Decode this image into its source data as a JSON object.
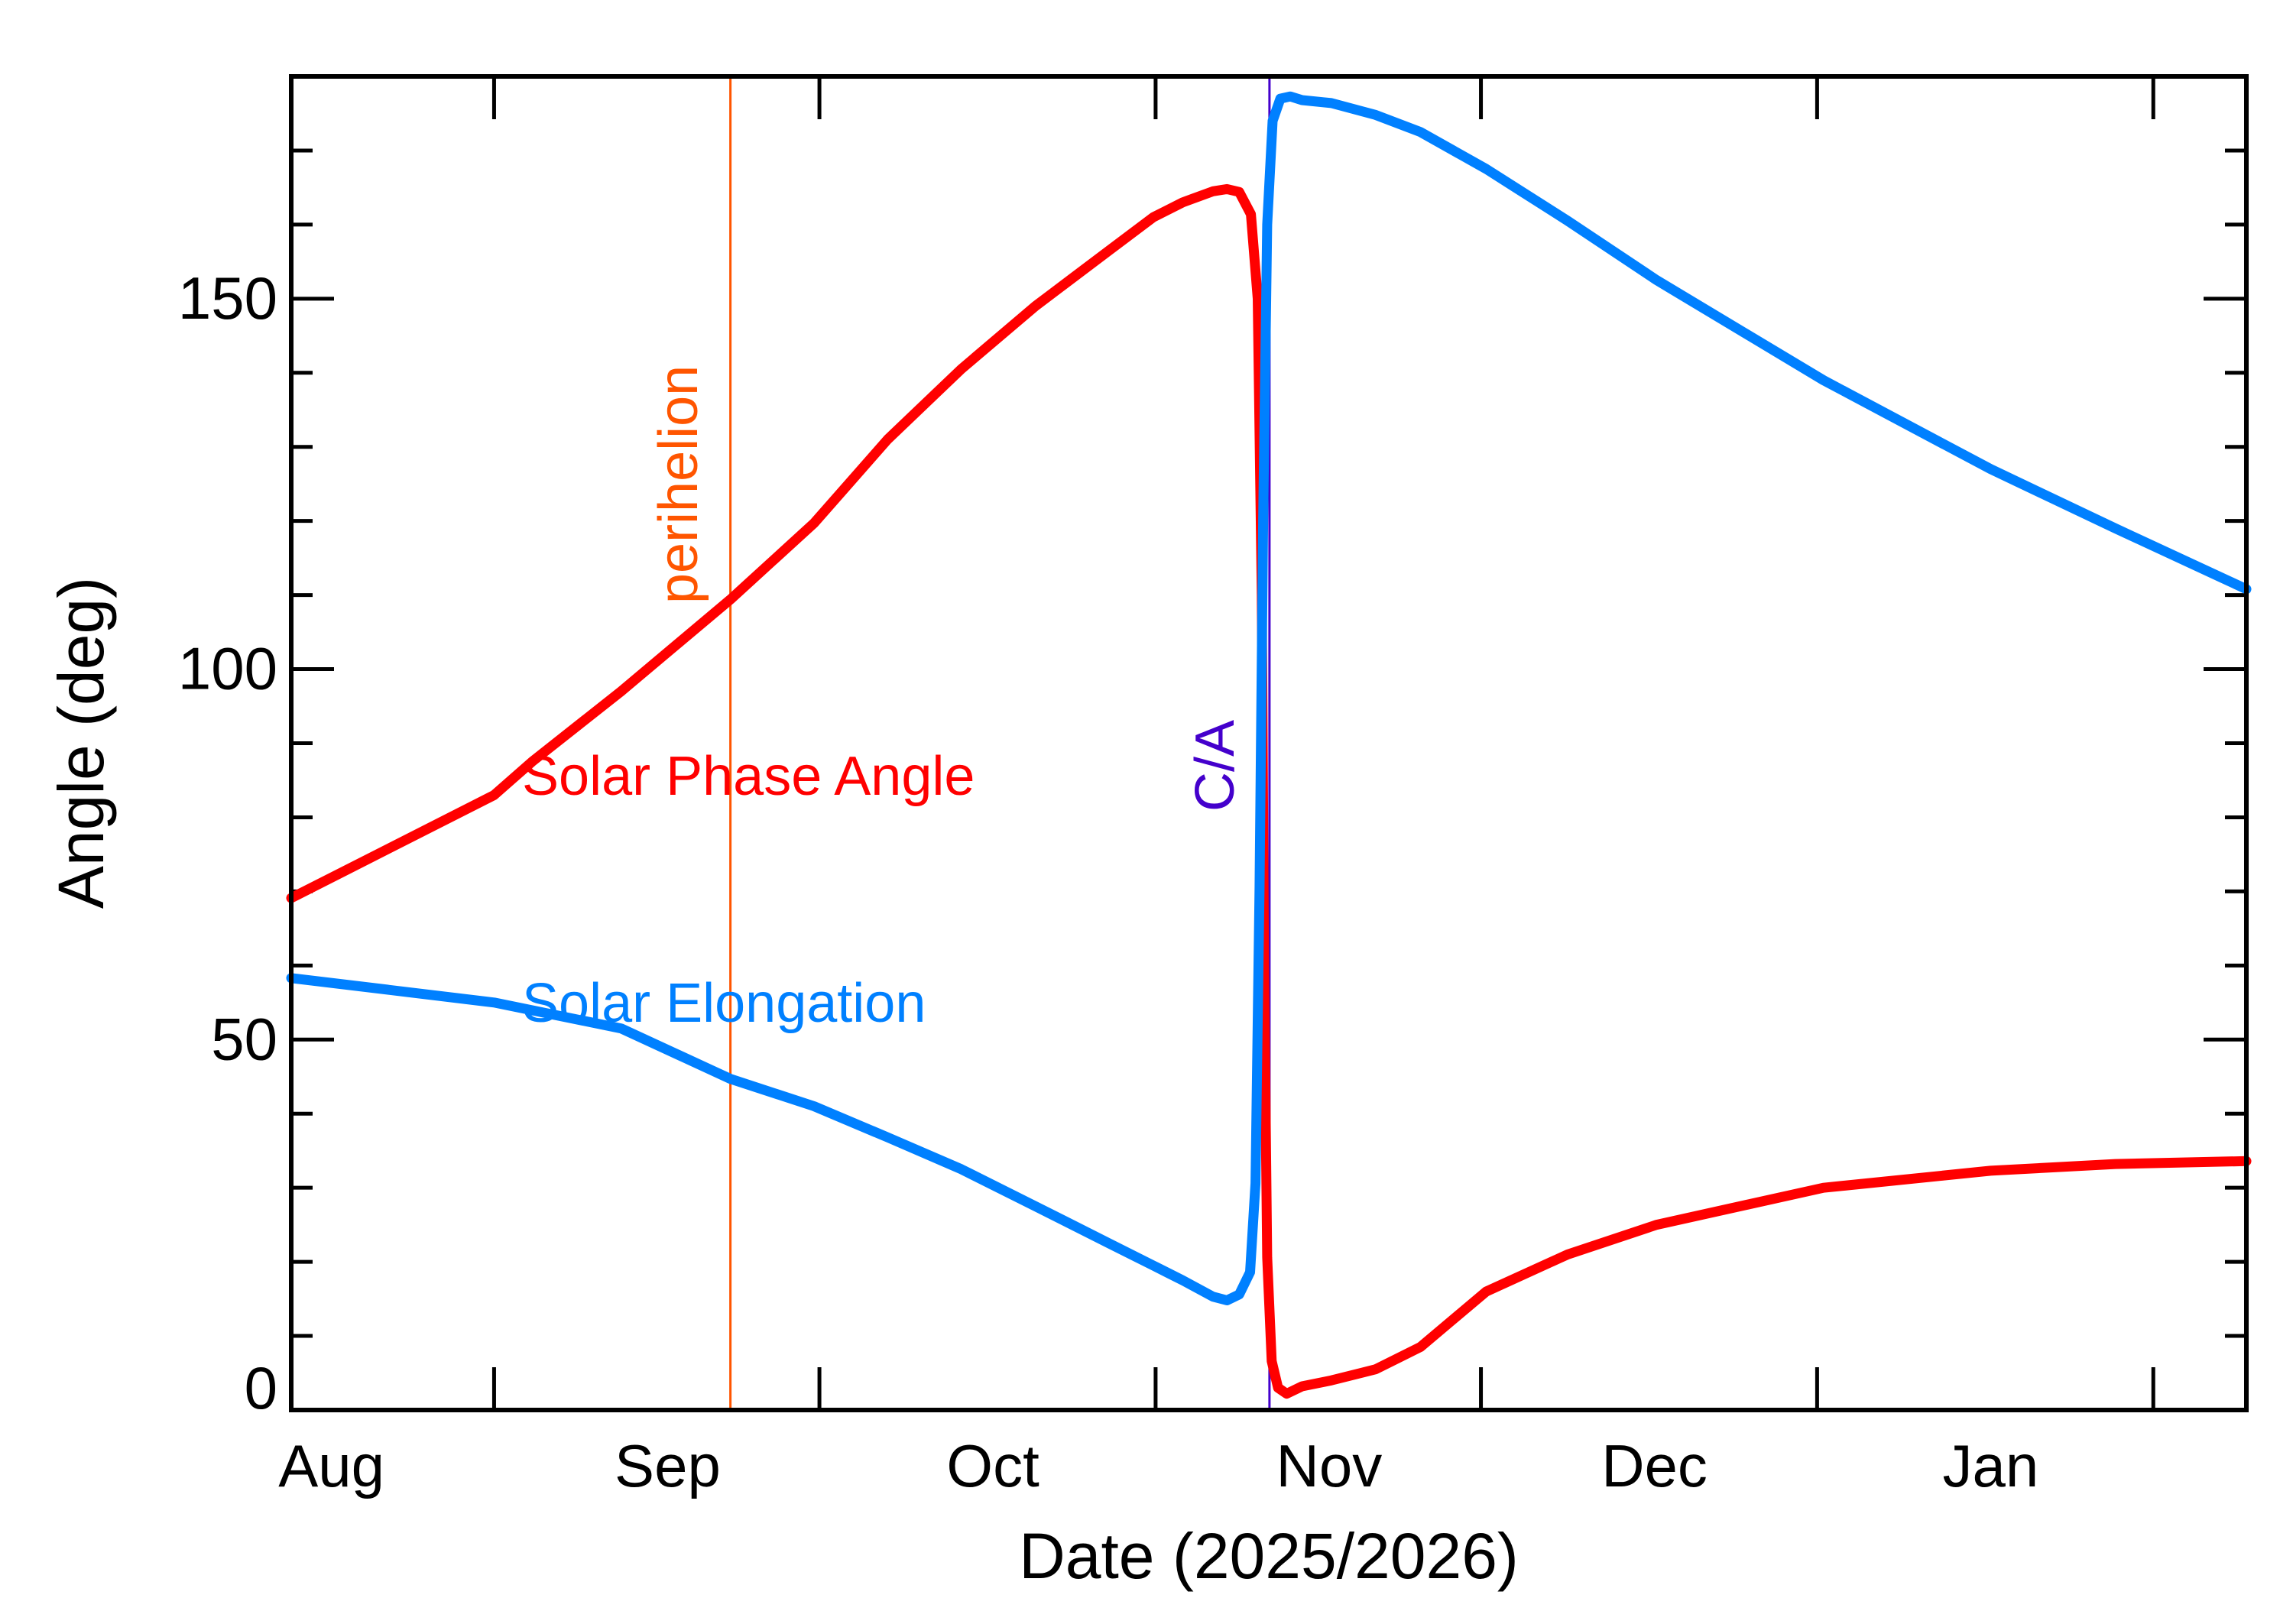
{
  "chart_data": {
    "type": "line",
    "title": "",
    "xlabel": "Date (2025/2026)",
    "ylabel": "Angle (deg)",
    "xlim": [
      "2025-07-28T07:00",
      "2026-01-24T14:00"
    ],
    "ylim": [
      0,
      180
    ],
    "grid": false,
    "x_tick_labels": [
      {
        "label": "Aug",
        "date": "2025-08-01"
      },
      {
        "label": "Sep",
        "date": "2025-09-01"
      },
      {
        "label": "Oct",
        "date": "2025-10-01"
      },
      {
        "label": "Nov",
        "date": "2025-11-01"
      },
      {
        "label": "Dec",
        "date": "2025-12-01"
      },
      {
        "label": "Jan",
        "date": "2026-01-01"
      }
    ],
    "x_major_ticks": [
      "2025-08-16",
      "2025-09-15",
      "2025-10-16",
      "2025-11-15",
      "2025-12-16",
      "2026-01-16"
    ],
    "y_ticks": [
      0,
      50,
      100,
      150
    ],
    "y_minor_step": 10,
    "events": [
      {
        "label": "perihelion",
        "date": "2025-09-06T19:00",
        "color": "#ff5500"
      },
      {
        "label": "C/A",
        "date": "2025-10-26T12:00",
        "color": "#4400cc"
      }
    ],
    "series": [
      {
        "name": "Solar Phase Angle",
        "color": "#ff0000",
        "points": [
          [
            "2025-07-28T07:00",
            69.1
          ],
          [
            "2025-08-16T00:00",
            83
          ],
          [
            "2025-08-19T12:00",
            87.5
          ],
          [
            "2025-08-27T17:00",
            97
          ],
          [
            "2025-09-06T19:00",
            109.4
          ],
          [
            "2025-09-14T12:00",
            119.7
          ],
          [
            "2025-09-21T07:00",
            131
          ],
          [
            "2025-09-28T02:00",
            140.5
          ],
          [
            "2025-10-04T22:00",
            149
          ],
          [
            "2025-10-11T17:00",
            156.5
          ],
          [
            "2025-10-15T19:00",
            161
          ],
          [
            "2025-10-18T12:00",
            163
          ],
          [
            "2025-10-21T07:00",
            164.5
          ],
          [
            "2025-10-22T14:00",
            164.8
          ],
          [
            "2025-10-23T17:00",
            164.4
          ],
          [
            "2025-10-24T19:00",
            161.4
          ],
          [
            "2025-10-25T10:00",
            150
          ],
          [
            "2025-10-25T19:00",
            110
          ],
          [
            "2025-10-26T00:00",
            60
          ],
          [
            "2025-10-26T07:00",
            20.6
          ],
          [
            "2025-10-26T17:00",
            6.6
          ],
          [
            "2025-10-27T07:00",
            3
          ],
          [
            "2025-10-28T02:00",
            2.2
          ],
          [
            "2025-10-29T12:00",
            3.2
          ],
          [
            "2025-11-01T05:00",
            4
          ],
          [
            "2025-11-05T07:00",
            5.5
          ],
          [
            "2025-11-09T10:00",
            8.5
          ],
          [
            "2025-11-15T12:00",
            16
          ],
          [
            "2025-11-23T00:00",
            21
          ],
          [
            "2025-12-01T05:00",
            25
          ],
          [
            "2025-12-16T14:00",
            30
          ],
          [
            "2026-01-01T00:00",
            32.3
          ],
          [
            "2026-01-12T12:00",
            33.2
          ],
          [
            "2026-01-24T14:00",
            33.6
          ]
        ]
      },
      {
        "name": "Solar Elongation",
        "color": "#0080ff",
        "points": [
          [
            "2025-07-28T07:00",
            58.3
          ],
          [
            "2025-08-16T00:00",
            55
          ],
          [
            "2025-08-27T17:00",
            51.5
          ],
          [
            "2025-09-06T19:00",
            44.7
          ],
          [
            "2025-09-14T12:00",
            41
          ],
          [
            "2025-09-21T07:00",
            36.8
          ],
          [
            "2025-09-28T02:00",
            32.5
          ],
          [
            "2025-10-04T22:00",
            27.5
          ],
          [
            "2025-10-11T17:00",
            22.5
          ],
          [
            "2025-10-15T19:00",
            19.5
          ],
          [
            "2025-10-18T12:00",
            17.5
          ],
          [
            "2025-10-21T07:00",
            15.3
          ],
          [
            "2025-10-22T14:00",
            14.8
          ],
          [
            "2025-10-23T17:00",
            15.6
          ],
          [
            "2025-10-24T17:00",
            18.6
          ],
          [
            "2025-10-25T05:00",
            30.6
          ],
          [
            "2025-10-25T14:00",
            70.5
          ],
          [
            "2025-10-25T22:00",
            120
          ],
          [
            "2025-10-26T07:00",
            160
          ],
          [
            "2025-10-26T19:00",
            174
          ],
          [
            "2025-10-27T12:00",
            177
          ],
          [
            "2025-10-28T10:00",
            177.3
          ],
          [
            "2025-10-29T12:00",
            176.8
          ],
          [
            "2025-11-01T05:00",
            176.4
          ],
          [
            "2025-11-05T07:00",
            174.8
          ],
          [
            "2025-11-09T10:00",
            172.5
          ],
          [
            "2025-11-15T12:00",
            167.5
          ],
          [
            "2025-11-23T00:00",
            160.5
          ],
          [
            "2025-12-01T05:00",
            152.5
          ],
          [
            "2025-12-16T14:00",
            139
          ],
          [
            "2026-01-01T00:00",
            127
          ],
          [
            "2026-01-12T12:00",
            119
          ],
          [
            "2026-01-24T14:00",
            110.8
          ]
        ]
      }
    ]
  }
}
